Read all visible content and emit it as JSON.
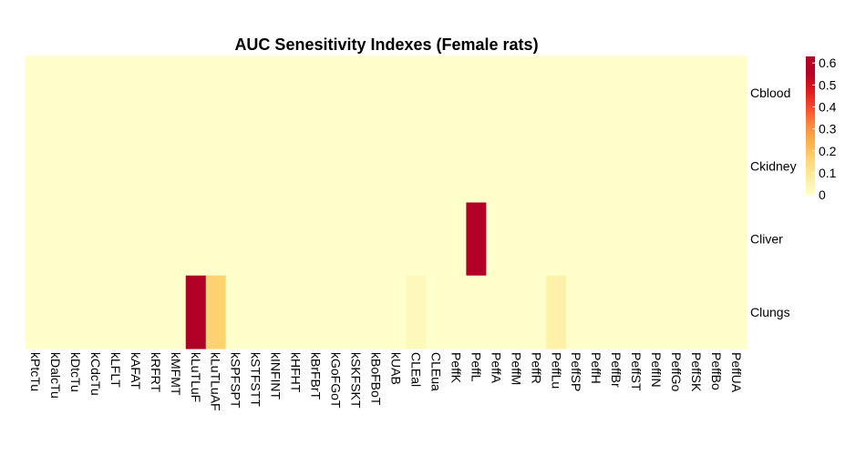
{
  "chart_data": {
    "type": "heatmap",
    "title": "AUC Senesitivity Indexes (Female rats)",
    "rows": [
      "Cblood",
      "Ckidney",
      "Cliver",
      "Clungs"
    ],
    "columns": [
      "kPtcTu",
      "kDalcTu",
      "kDtcTu",
      "kCdcTu",
      "kLFLT",
      "kAFAT",
      "kRFRT",
      "kMFMT",
      "kLuTLuF",
      "kLuTLuAF",
      "kSPFSPT",
      "kSTFSTT",
      "kINFINT",
      "kHFHT",
      "kBrFBrT",
      "kGoFGoT",
      "kSKFSKT",
      "kBoFBoT",
      "kUAB",
      "CLEal",
      "CLEua",
      "PeffK",
      "PeffL",
      "PeffA",
      "PeffM",
      "PeffR",
      "PeffLu",
      "PeffSP",
      "PeffH",
      "PeffBr",
      "PeffST",
      "PeffIN",
      "PeffGo",
      "PeffSK",
      "PeffBo",
      "PeffUA"
    ],
    "values": [
      [
        0,
        0,
        0,
        0,
        0,
        0,
        0,
        0,
        0,
        0,
        0,
        0,
        0,
        0,
        0,
        0,
        0,
        0,
        0,
        0,
        0,
        0,
        0,
        0,
        0,
        0,
        0,
        0,
        0,
        0,
        0,
        0,
        0,
        0,
        0,
        0
      ],
      [
        0,
        0,
        0,
        0,
        0,
        0,
        0,
        0,
        0,
        0,
        0,
        0,
        0,
        0,
        0,
        0,
        0,
        0,
        0,
        0,
        0,
        0,
        0,
        0,
        0,
        0,
        0,
        0,
        0,
        0,
        0,
        0,
        0,
        0,
        0,
        0
      ],
      [
        0,
        0,
        0,
        0,
        0,
        0,
        0,
        0,
        0,
        0,
        0,
        0,
        0,
        0,
        0,
        0,
        0,
        0,
        0,
        0,
        0,
        0,
        0.63,
        0,
        0,
        0,
        0,
        0,
        0,
        0,
        0,
        0,
        0,
        0,
        0,
        0
      ],
      [
        0,
        0,
        0,
        0,
        0,
        0,
        0,
        0,
        0.63,
        0.17,
        0,
        0,
        0,
        0,
        0,
        0,
        0,
        0,
        0,
        0.03,
        0,
        0,
        0,
        0,
        0,
        0,
        0.06,
        0,
        0,
        0,
        0,
        0,
        0,
        0,
        0,
        0
      ]
    ],
    "color_range": [
      0,
      0.63
    ],
    "colorbar_ticks": [
      "0",
      "0.1",
      "0.2",
      "0.3",
      "0.4",
      "0.5",
      "0.6"
    ],
    "colors": [
      "#ffffcc",
      "#ffeda0",
      "#fed976",
      "#feb24c",
      "#fd8d3c",
      "#fc4e2a",
      "#e31a1c",
      "#bd0026",
      "#b10026"
    ],
    "grid": false,
    "legend": "right"
  }
}
